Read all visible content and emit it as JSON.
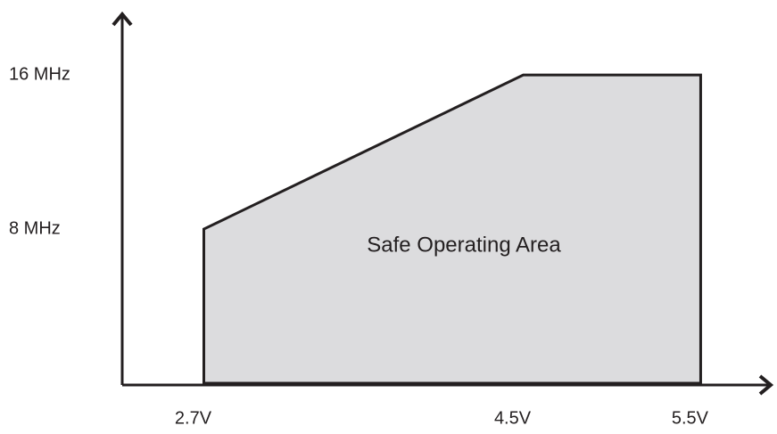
{
  "chart_data": {
    "type": "area",
    "x": [
      2.7,
      4.5,
      5.5
    ],
    "series": [
      {
        "color": "#dcdcde",
        "values": [
          8,
          16,
          16
        ]
      }
    ],
    "annotation": "Safe Operating Area",
    "xlim": [
      2.24,
      5.9
    ],
    "xticks": [
      {
        "value": 2.7,
        "label": "2.7V"
      },
      {
        "value": 4.5,
        "label": "4.5V"
      },
      {
        "value": 5.5,
        "label": "5.5V"
      }
    ],
    "ylim": [
      0,
      19.2
    ],
    "yticks": [
      {
        "value": 8,
        "label": "8 MHz"
      },
      {
        "value": 16,
        "label": "16 MHz"
      }
    ],
    "grid": false
  }
}
